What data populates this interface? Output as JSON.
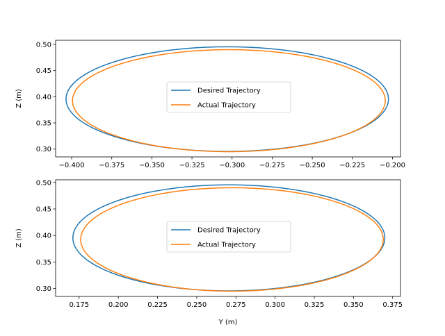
{
  "chart_data": [
    {
      "type": "line",
      "xlabel": "",
      "ylabel": "Z (m)",
      "xlim": [
        -0.41,
        -0.195
      ],
      "ylim": [
        0.285,
        0.508
      ],
      "xticks": [
        -0.4,
        -0.375,
        -0.35,
        -0.325,
        -0.3,
        -0.275,
        -0.25,
        -0.225,
        -0.2
      ],
      "xtick_labels": [
        "−0.400",
        "−0.375",
        "−0.350",
        "−0.325",
        "−0.300",
        "−0.275",
        "−0.250",
        "−0.225",
        "−0.200"
      ],
      "yticks": [
        0.3,
        0.35,
        0.4,
        0.45,
        0.5
      ],
      "ytick_labels": [
        "0.30",
        "0.35",
        "0.40",
        "0.45",
        "0.50"
      ],
      "grid": false,
      "legend": "center",
      "series": [
        {
          "name": "Desired Trajectory",
          "color": "#1f77b4",
          "shape": "ellipse",
          "center": [
            -0.303,
            0.3955
          ],
          "radius_x": 0.1005,
          "radius_y": 0.1
        },
        {
          "name": "Actual Trajectory",
          "color": "#ff7f0e",
          "shape": "ellipse",
          "center": [
            -0.302,
            0.3925
          ],
          "radius_x": 0.0975,
          "radius_y": 0.0975
        }
      ]
    },
    {
      "type": "line",
      "xlabel": "Y (m)",
      "ylabel": "Z (m)",
      "xlim": [
        0.16,
        0.38
      ],
      "ylim": [
        0.285,
        0.505
      ],
      "xticks": [
        0.175,
        0.2,
        0.225,
        0.25,
        0.275,
        0.3,
        0.325,
        0.35,
        0.375
      ],
      "xtick_labels": [
        "0.175",
        "0.200",
        "0.225",
        "0.250",
        "0.275",
        "0.300",
        "0.325",
        "0.350",
        "0.375"
      ],
      "yticks": [
        0.3,
        0.35,
        0.4,
        0.45,
        0.5
      ],
      "ytick_labels": [
        "0.30",
        "0.35",
        "0.40",
        "0.45",
        "0.50"
      ],
      "grid": false,
      "legend": "center",
      "series": [
        {
          "name": "Desired Trajectory",
          "color": "#1f77b4",
          "shape": "ellipse",
          "center": [
            0.2705,
            0.3955
          ],
          "radius_x": 0.0995,
          "radius_y": 0.1
        },
        {
          "name": "Actual Trajectory",
          "color": "#ff7f0e",
          "shape": "ellipse",
          "center": [
            0.2725,
            0.3925
          ],
          "radius_x": 0.0965,
          "radius_y": 0.0975
        }
      ]
    }
  ]
}
